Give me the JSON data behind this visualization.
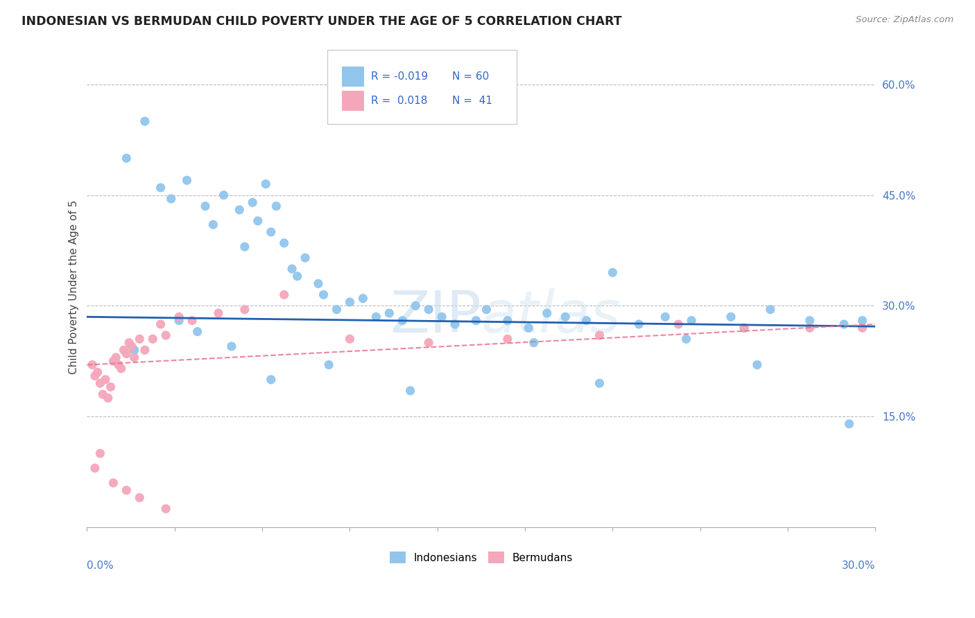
{
  "title": "INDONESIAN VS BERMUDAN CHILD POVERTY UNDER THE AGE OF 5 CORRELATION CHART",
  "source": "Source: ZipAtlas.com",
  "ylabel": "Child Poverty Under the Age of 5",
  "ylabel_right_values": [
    15.0,
    30.0,
    45.0,
    60.0
  ],
  "xmin": 0.0,
  "xmax": 30.0,
  "ymin": 0.0,
  "ymax": 65.0,
  "legend_blue_r": "R = -0.019",
  "legend_blue_n": "N = 60",
  "legend_pink_r": "R =  0.018",
  "legend_pink_n": "N =  41",
  "legend_label_blue": "Indonesians",
  "legend_label_pink": "Bermudans",
  "blue_color": "#92C5EC",
  "pink_color": "#F4A7BA",
  "blue_line_color": "#2060B0",
  "pink_line_color": "#E87090",
  "watermark_color": "#DDEEFF",
  "blue_trend_y0": 28.5,
  "blue_trend_y1": 27.2,
  "pink_trend_y0": 22.0,
  "pink_trend_y1": 27.5,
  "indonesian_x": [
    1.5,
    2.2,
    2.8,
    3.2,
    3.8,
    4.5,
    4.8,
    5.2,
    5.8,
    6.0,
    6.3,
    6.5,
    6.8,
    7.0,
    7.2,
    7.5,
    7.8,
    8.0,
    8.3,
    8.8,
    9.0,
    9.5,
    10.0,
    10.5,
    11.0,
    11.5,
    12.0,
    12.5,
    13.0,
    13.5,
    14.0,
    14.8,
    15.2,
    16.0,
    16.8,
    17.5,
    18.2,
    19.0,
    20.0,
    21.0,
    22.0,
    23.0,
    24.5,
    25.0,
    26.0,
    27.5,
    28.8,
    29.5,
    1.8,
    3.5,
    4.2,
    5.5,
    7.0,
    9.2,
    12.3,
    17.0,
    19.5,
    22.8,
    25.5,
    29.0
  ],
  "indonesian_y": [
    50.0,
    55.0,
    46.0,
    44.5,
    47.0,
    43.5,
    41.0,
    45.0,
    43.0,
    38.0,
    44.0,
    41.5,
    46.5,
    40.0,
    43.5,
    38.5,
    35.0,
    34.0,
    36.5,
    33.0,
    31.5,
    29.5,
    30.5,
    31.0,
    28.5,
    29.0,
    28.0,
    30.0,
    29.5,
    28.5,
    27.5,
    28.0,
    29.5,
    28.0,
    27.0,
    29.0,
    28.5,
    28.0,
    34.5,
    27.5,
    28.5,
    28.0,
    28.5,
    27.0,
    29.5,
    28.0,
    27.5,
    28.0,
    24.0,
    28.0,
    26.5,
    24.5,
    20.0,
    22.0,
    18.5,
    25.0,
    19.5,
    25.5,
    22.0,
    14.0
  ],
  "bermudan_x": [
    0.2,
    0.3,
    0.4,
    0.5,
    0.6,
    0.7,
    0.8,
    0.9,
    1.0,
    1.1,
    1.2,
    1.3,
    1.4,
    1.5,
    1.6,
    1.7,
    1.8,
    2.0,
    2.2,
    2.5,
    2.8,
    3.0,
    3.5,
    4.0,
    5.0,
    6.0,
    7.5,
    10.0,
    13.0,
    16.0,
    19.5,
    22.5,
    25.0,
    27.5,
    29.5,
    0.3,
    0.5,
    1.0,
    1.5,
    2.0,
    3.0
  ],
  "bermudan_y": [
    22.0,
    20.5,
    21.0,
    19.5,
    18.0,
    20.0,
    17.5,
    19.0,
    22.5,
    23.0,
    22.0,
    21.5,
    24.0,
    23.5,
    25.0,
    24.5,
    23.0,
    25.5,
    24.0,
    25.5,
    27.5,
    26.0,
    28.5,
    28.0,
    29.0,
    29.5,
    31.5,
    25.5,
    25.0,
    25.5,
    26.0,
    27.5,
    27.0,
    27.0,
    27.0,
    8.0,
    10.0,
    6.0,
    5.0,
    4.0,
    2.5
  ]
}
